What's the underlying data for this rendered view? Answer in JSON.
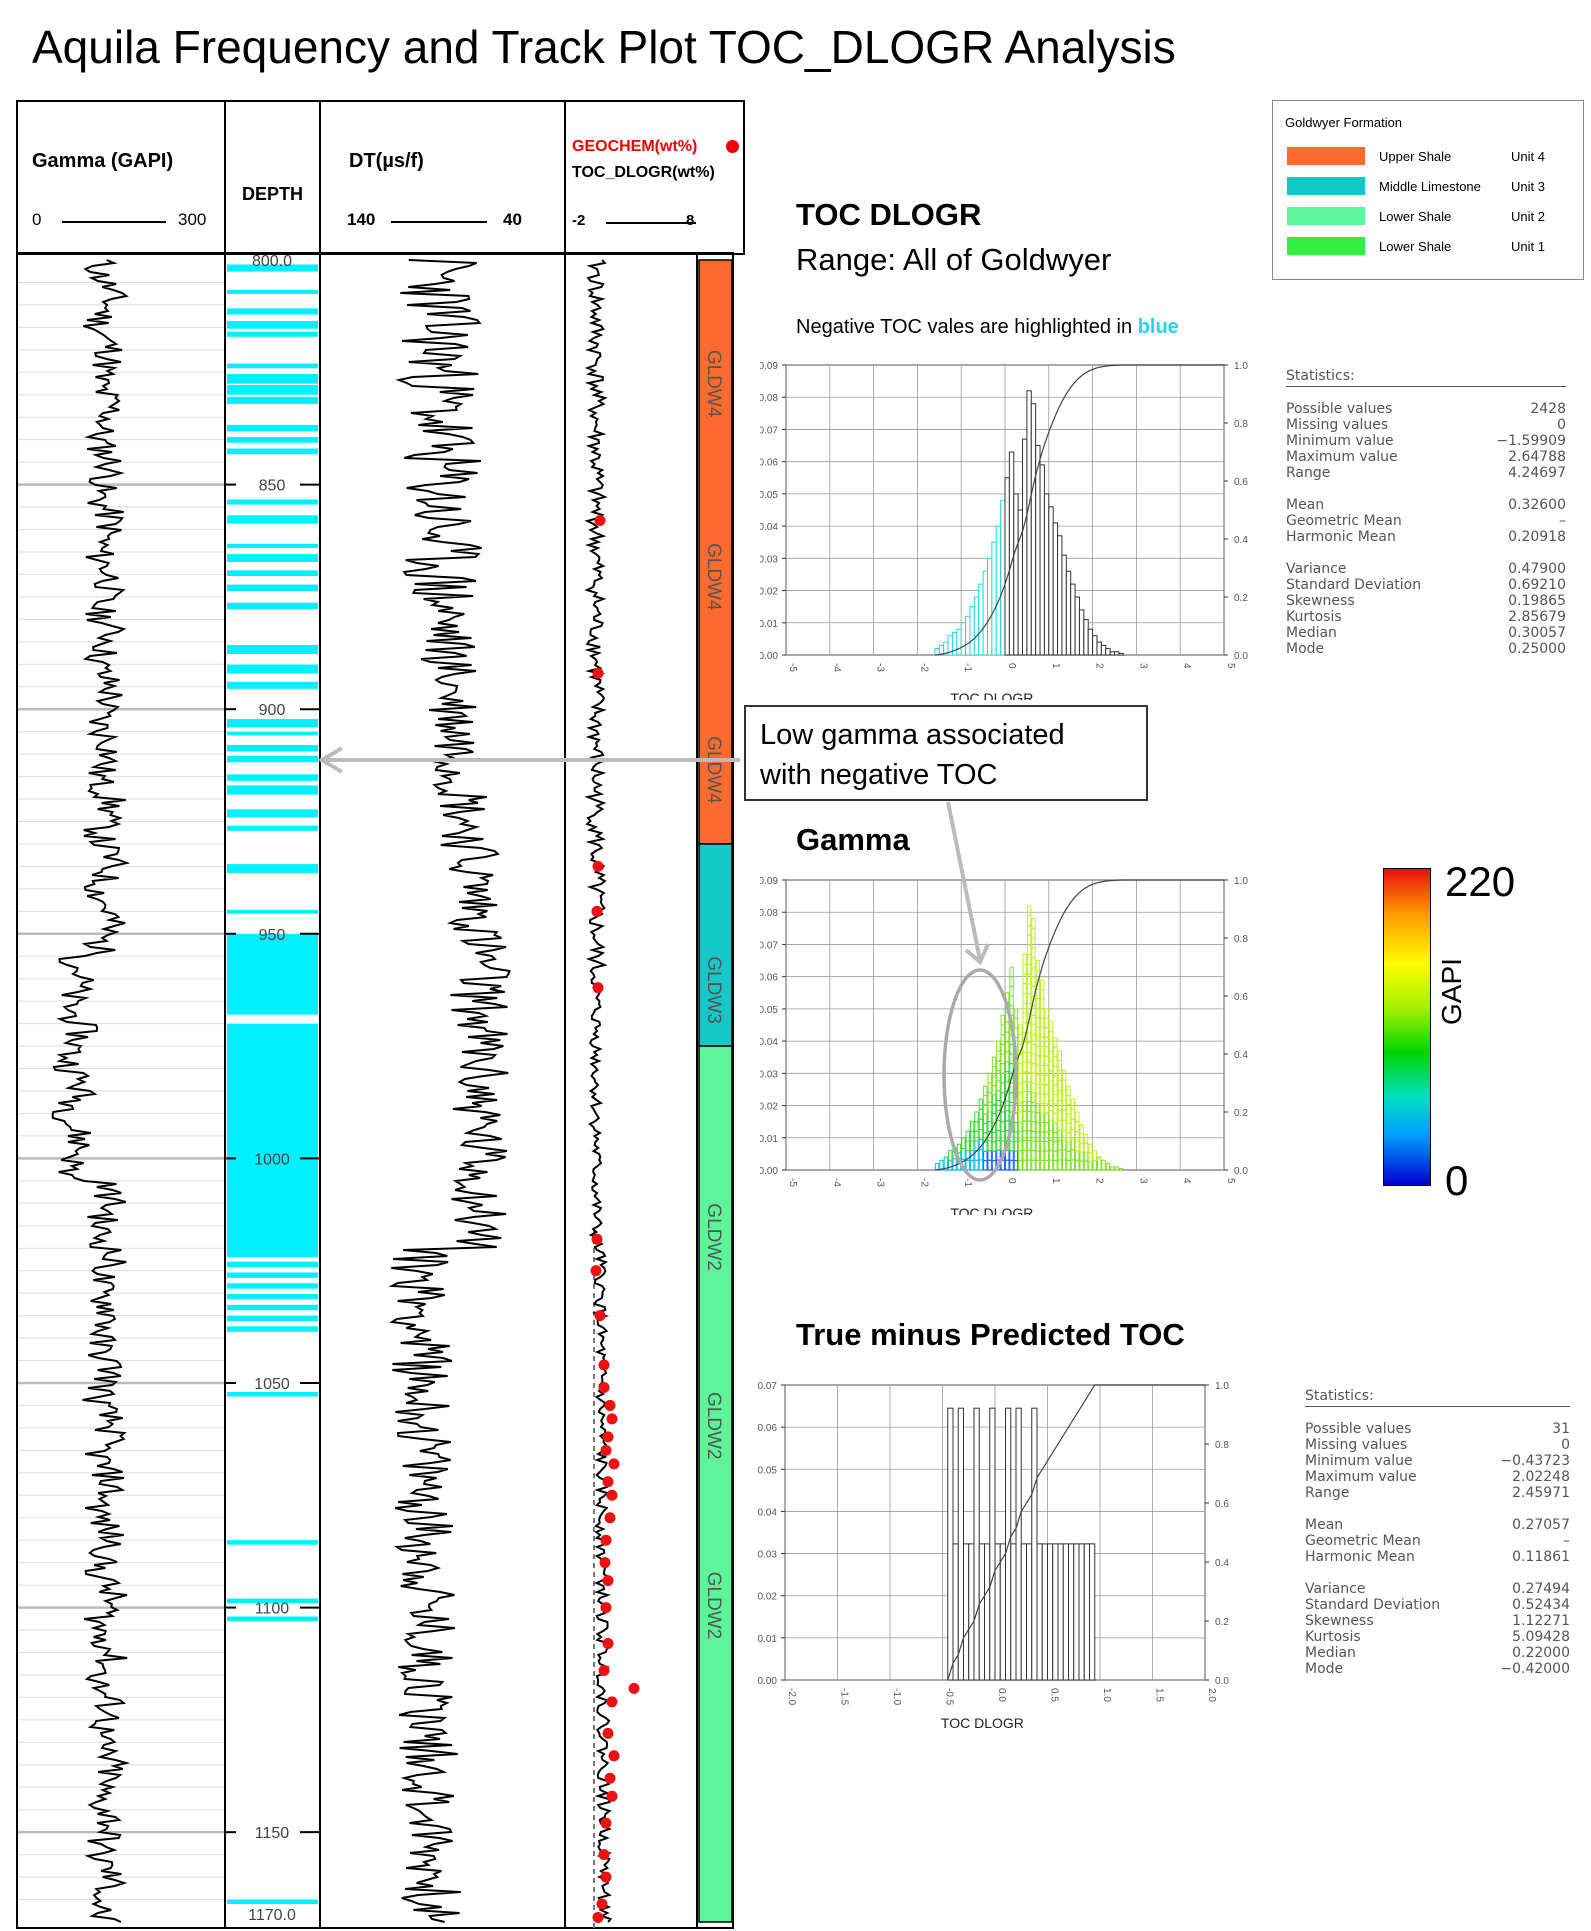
{
  "title": "Aquila Frequency and Track Plot TOC_DLOGR Analysis",
  "tracks": {
    "gamma": {
      "label": "Gamma (GAPI)",
      "min": "0",
      "max": "300"
    },
    "depth": {
      "label": "DEPTH",
      "ticks": [
        "800.0",
        "850",
        "900",
        "950",
        "1000",
        "1050",
        "1100",
        "1150",
        "1170.0"
      ]
    },
    "dt": {
      "label": "DT(µs/f)",
      "min": "140",
      "max": "40"
    },
    "toc": {
      "label1": "GEOCHEM(wt%)",
      "label2": "TOC_DLOGR(wt%)",
      "min": "-2",
      "max": "8"
    },
    "zones": [
      "GLDW4",
      "GLDW4",
      "GLDW4",
      "GLDW3",
      "GLDW2",
      "GLDW2",
      "GLDW2"
    ]
  },
  "legend": {
    "title": "Goldwyer Formation",
    "items": [
      {
        "name": "Upper Shale",
        "unit": "Unit 4",
        "color": "#ff6a2e"
      },
      {
        "name": "Middle Limestone",
        "unit": "Unit 3",
        "color": "#14c8c8"
      },
      {
        "name": "Lower Shale",
        "unit": "Unit 2",
        "color": "#5cf59a"
      },
      {
        "name": "Lower Shale",
        "unit": "Unit 1",
        "color": "#33ee44"
      }
    ]
  },
  "toc_section": {
    "title": "TOC DLOGR",
    "subtitle": "Range: All of Goldwyer",
    "note_prefix": "Negative TOC vales are highlighted in ",
    "note_highlight": "blue"
  },
  "gamma_section": {
    "title": "Gamma"
  },
  "residual_section": {
    "title": "True  minus Predicted TOC"
  },
  "callout": {
    "line1": "Low gamma associated",
    "line2": "with negative TOC"
  },
  "colorbar": {
    "max": "220",
    "min": "0",
    "label": "GAPI"
  },
  "stats1": {
    "header": "Statistics:",
    "groups": [
      [
        [
          "Possible values",
          "2428"
        ],
        [
          "Missing values",
          "0"
        ],
        [
          "Minimum value",
          "−1.59909"
        ],
        [
          "Maximum value",
          "2.64788"
        ],
        [
          "Range",
          "4.24697"
        ]
      ],
      [
        [
          "Mean",
          "0.32600"
        ],
        [
          "Geometric Mean",
          "–"
        ],
        [
          "Harmonic Mean",
          "0.20918"
        ]
      ],
      [
        [
          "Variance",
          "0.47900"
        ],
        [
          "Standard Deviation",
          "0.69210"
        ],
        [
          "Skewness",
          "0.19865"
        ],
        [
          "Kurtosis",
          "2.85679"
        ],
        [
          "Median",
          "0.30057"
        ],
        [
          "Mode",
          "0.25000"
        ]
      ]
    ]
  },
  "stats2": {
    "header": "Statistics:",
    "groups": [
      [
        [
          "Possible values",
          "31"
        ],
        [
          "Missing values",
          "0"
        ],
        [
          "Minimum value",
          "−0.43723"
        ],
        [
          "Maximum value",
          "2.02248"
        ],
        [
          "Range",
          "2.45971"
        ]
      ],
      [
        [
          "Mean",
          "0.27057"
        ],
        [
          "Geometric Mean",
          "–"
        ],
        [
          "Harmonic Mean",
          "0.11861"
        ]
      ],
      [
        [
          "Variance",
          "0.27494"
        ],
        [
          "Standard Deviation",
          "0.52434"
        ],
        [
          "Skewness",
          "1.12271"
        ],
        [
          "Kurtosis",
          "5.09428"
        ],
        [
          "Median",
          "0.22000"
        ],
        [
          "Mode",
          "−0.42000"
        ]
      ]
    ]
  },
  "chart_data": [
    {
      "type": "bar",
      "name": "toc-histogram",
      "xlabel": "TOC DLOGR",
      "xlim": [
        -5,
        5
      ],
      "ylim": [
        0,
        0.09
      ],
      "y2lim": [
        0,
        1.0
      ],
      "xticks": [
        "-5",
        "-4",
        "-3",
        "-2",
        "-1",
        "0",
        "1",
        "2",
        "3",
        "4",
        "5"
      ],
      "yticks": [
        "0.00",
        "0.01",
        "0.02",
        "0.03",
        "0.04",
        "0.05",
        "0.06",
        "0.07",
        "0.08",
        "0.09"
      ],
      "y2ticks": [
        "0.0",
        "0.2",
        "0.4",
        "0.6",
        "0.8",
        "1.0"
      ],
      "bin_width": 0.1,
      "bin_start": -1.6,
      "values": [
        0.002,
        0.003,
        0.004,
        0.006,
        0.007,
        0.008,
        0.01,
        0.012,
        0.015,
        0.018,
        0.022,
        0.026,
        0.03,
        0.035,
        0.04,
        0.048,
        0.055,
        0.063,
        0.05,
        0.045,
        0.067,
        0.082,
        0.078,
        0.065,
        0.059,
        0.05,
        0.046,
        0.041,
        0.037,
        0.031,
        0.026,
        0.022,
        0.018,
        0.014,
        0.011,
        0.008,
        0.006,
        0.004,
        0.003,
        0.002,
        0.001,
        0.001,
        0.0005
      ],
      "grid": true
    },
    {
      "type": "bar",
      "name": "gamma-histogram",
      "xlabel": "TOC DLOGR",
      "xlim": [
        -5,
        5
      ],
      "ylim": [
        0,
        0.09
      ],
      "y2lim": [
        0,
        1.0
      ],
      "xticks": [
        "-5",
        "-4",
        "-3",
        "-2",
        "-1",
        "0",
        "1",
        "2",
        "3",
        "4",
        "5"
      ],
      "yticks": [
        "0.00",
        "0.01",
        "0.02",
        "0.03",
        "0.04",
        "0.05",
        "0.06",
        "0.07",
        "0.08",
        "0.09"
      ],
      "y2ticks": [
        "0.0",
        "0.2",
        "0.4",
        "0.6",
        "0.8",
        "1.0"
      ],
      "bin_width": 0.1,
      "bin_start": -1.6,
      "values": [
        0.002,
        0.003,
        0.004,
        0.006,
        0.007,
        0.008,
        0.01,
        0.012,
        0.015,
        0.018,
        0.022,
        0.026,
        0.03,
        0.035,
        0.04,
        0.048,
        0.055,
        0.063,
        0.05,
        0.045,
        0.067,
        0.082,
        0.078,
        0.065,
        0.059,
        0.05,
        0.046,
        0.041,
        0.037,
        0.031,
        0.026,
        0.022,
        0.018,
        0.014,
        0.011,
        0.008,
        0.006,
        0.004,
        0.003,
        0.002,
        0.001,
        0.001,
        0.0005
      ],
      "grid": true
    },
    {
      "type": "bar",
      "name": "residual-histogram",
      "xlabel": "TOC DLOGR",
      "xlim": [
        -2,
        2
      ],
      "ylim": [
        0,
        0.07
      ],
      "y2lim": [
        0,
        1.0
      ],
      "xticks": [
        "-2.0",
        "-1.5",
        "-1.0",
        "-0.5",
        "0.0",
        "0.5",
        "1.0",
        "1.5",
        "2.0"
      ],
      "yticks": [
        "0.00",
        "0.01",
        "0.02",
        "0.03",
        "0.04",
        "0.05",
        "0.06",
        "0.07"
      ],
      "y2ticks": [
        "0.0",
        "0.2",
        "0.4",
        "0.6",
        "0.8",
        "1.0"
      ],
      "bin_width": 0.05,
      "bin_start": -0.45,
      "values": [
        0.0645,
        0.0323,
        0.0645,
        0.0323,
        0.0323,
        0.0645,
        0.0323,
        0.0323,
        0.0645,
        0.0323,
        0.0323,
        0.0645,
        0.0323,
        0.0645,
        0.0323,
        0.0323,
        0.0645,
        0.0323,
        0.0323,
        0.0323,
        0.0323,
        0.0323,
        0.0323,
        0.0323,
        0.0323,
        0.0323,
        0.0323,
        0.0323
      ],
      "grid": true
    }
  ]
}
